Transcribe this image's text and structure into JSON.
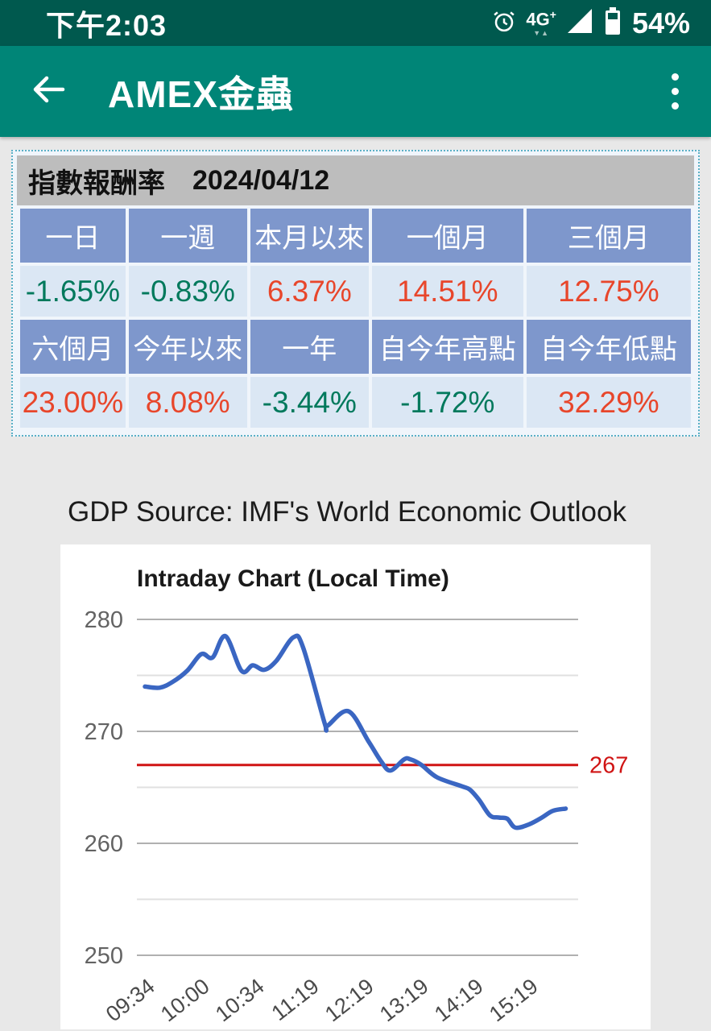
{
  "status_bar": {
    "time": "下午2:03",
    "network": "4G",
    "network_plus": "+",
    "network_arrows": "▼▲",
    "battery": "54%"
  },
  "app_bar": {
    "title": "AMEX金蟲"
  },
  "icons": {
    "back": "back-arrow",
    "menu": "overflow-menu-dots",
    "alarm": "alarm-clock",
    "signal": "signal-triangle",
    "battery": "battery"
  },
  "palette": {
    "status_bar": "#00594e",
    "app_bar": "#008577",
    "up_color": "#e8462b",
    "down_color": "#00795c",
    "header_cell": "#7e97cc",
    "value_cell": "#dbe7f4",
    "table_title_bg": "#bdbdbd",
    "line_color": "#3a66c2",
    "reference_color": "#d01414"
  },
  "returns_table": {
    "title": "指數報酬率",
    "date": "2024/04/12",
    "header_row_1": [
      "一日",
      "一週",
      "本月以來",
      "一個月",
      "三個月"
    ],
    "value_row_1": [
      {
        "text": "-1.65%",
        "tone": "down"
      },
      {
        "text": "-0.83%",
        "tone": "down"
      },
      {
        "text": "6.37%",
        "tone": "up"
      },
      {
        "text": "14.51%",
        "tone": "up"
      },
      {
        "text": "12.75%",
        "tone": "up"
      }
    ],
    "header_row_2": [
      "六個月",
      "今年以來",
      "一年",
      "自今年高點",
      "自今年低點"
    ],
    "value_row_2": [
      {
        "text": "23.00%",
        "tone": "up"
      },
      {
        "text": "8.08%",
        "tone": "up"
      },
      {
        "text": "-3.44%",
        "tone": "down"
      },
      {
        "text": "-1.72%",
        "tone": "down"
      },
      {
        "text": "32.29%",
        "tone": "up"
      }
    ]
  },
  "source_note": "GDP Source: IMF's World Economic Outlook",
  "chart_data": {
    "type": "line",
    "title": "Intraday Chart (Local Time)",
    "xlabel": "",
    "ylabel": "",
    "ylim": [
      250,
      280
    ],
    "y_ticks": [
      250,
      255,
      260,
      265,
      270,
      275,
      280
    ],
    "y_labeled_ticks": [
      250,
      260,
      270,
      280
    ],
    "x_tick_labels": [
      "09:34",
      "10:00",
      "10:34",
      "11:19",
      "12:19",
      "13:19",
      "14:19",
      "15:19"
    ],
    "grid": "horizontal",
    "legend": "none",
    "reference_line": {
      "value": 267,
      "label": "267"
    },
    "points": [
      [
        "09:34",
        274.0
      ],
      [
        "09:41",
        273.9
      ],
      [
        "09:47",
        274.4
      ],
      [
        "09:54",
        275.4
      ],
      [
        "10:01",
        276.9
      ],
      [
        "10:08",
        276.6
      ],
      [
        "10:16",
        278.5
      ],
      [
        "10:26",
        275.4
      ],
      [
        "10:33",
        275.9
      ],
      [
        "10:42",
        275.5
      ],
      [
        "10:52",
        276.3
      ],
      [
        "11:06",
        278.4
      ],
      [
        "11:14",
        277.5
      ],
      [
        "11:36",
        270.7
      ],
      [
        "11:39",
        270.5
      ],
      [
        "12:02",
        271.8
      ],
      [
        "12:24",
        269.1
      ],
      [
        "12:38",
        267.3
      ],
      [
        "12:48",
        266.5
      ],
      [
        "13:03",
        267.5
      ],
      [
        "13:10",
        267.5
      ],
      [
        "13:22",
        267.0
      ],
      [
        "13:39",
        265.9
      ],
      [
        "14:06",
        265.1
      ],
      [
        "14:15",
        264.8
      ],
      [
        "14:25",
        263.9
      ],
      [
        "14:37",
        262.5
      ],
      [
        "14:47",
        262.3
      ],
      [
        "14:56",
        262.2
      ],
      [
        "15:05",
        261.4
      ],
      [
        "15:20",
        261.7
      ],
      [
        "15:34",
        262.3
      ],
      [
        "15:46",
        262.9
      ],
      [
        "16:00",
        263.1
      ]
    ]
  }
}
